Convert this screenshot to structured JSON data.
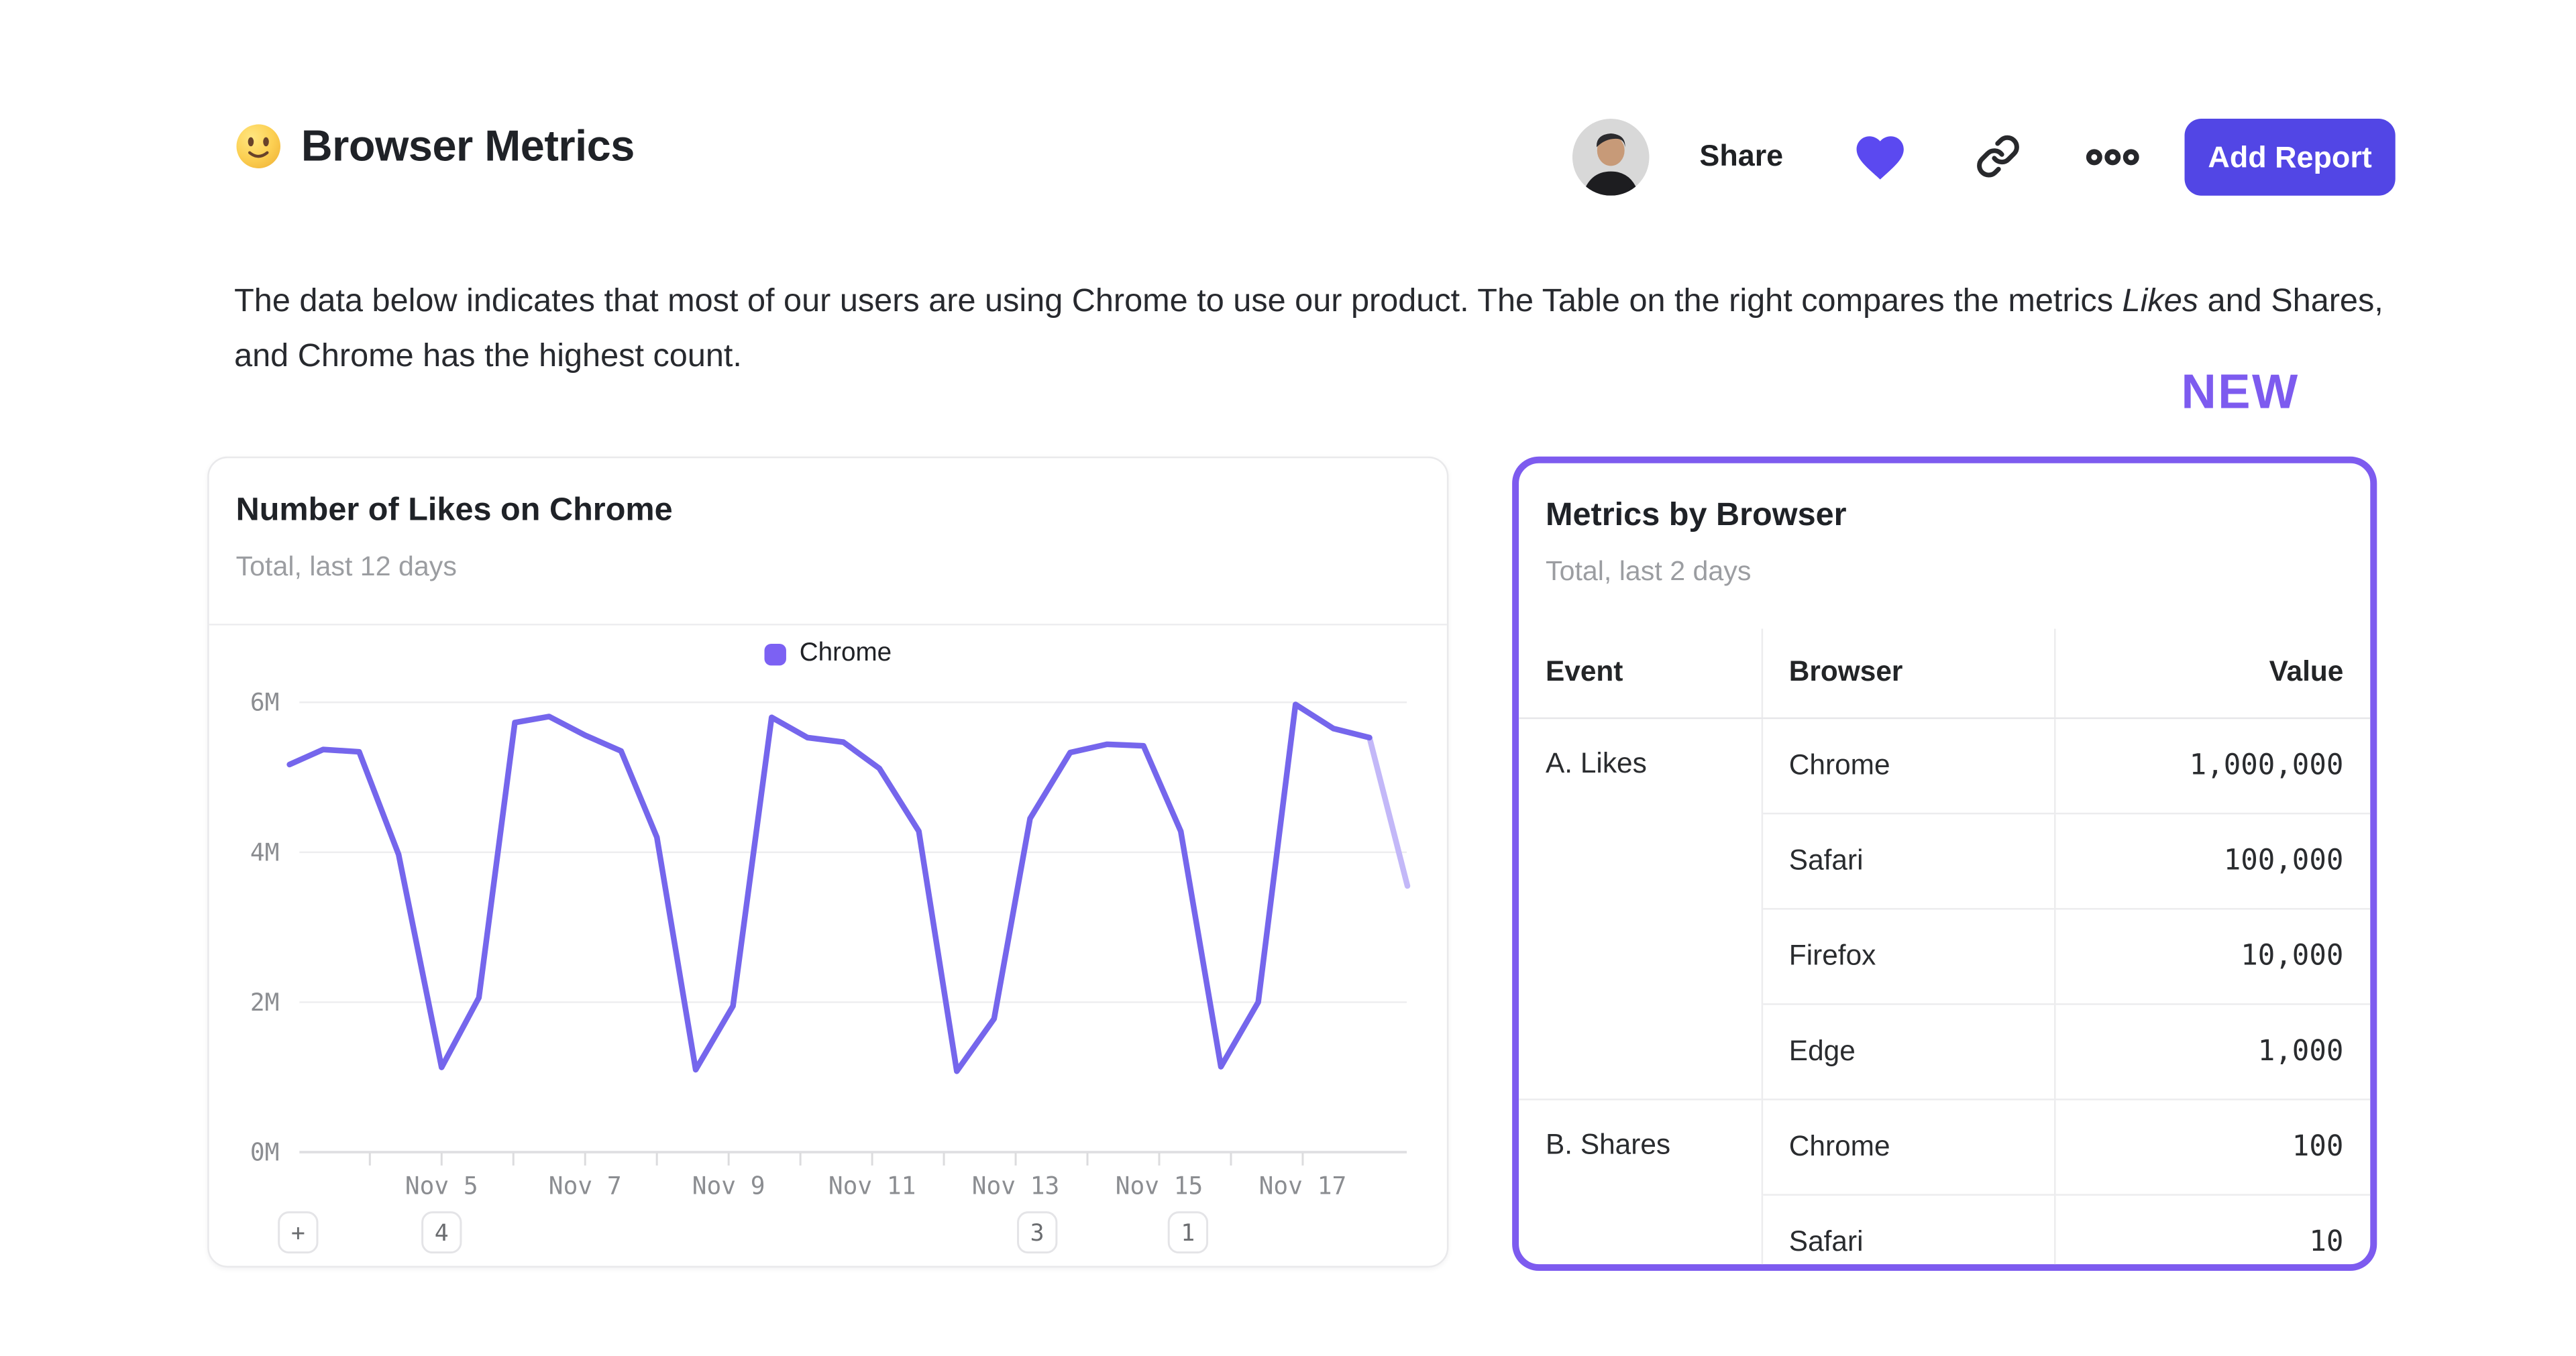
{
  "header": {
    "title": "Browser Metrics",
    "share_label": "Share",
    "add_report_label": "Add Report"
  },
  "description": {
    "part1": "The data below indicates that most of our users are using Chrome to use our product. The Table on the right compares the metrics ",
    "italic": "Likes",
    "part2": " and Shares, and Chrome has the highest count."
  },
  "new_badge": "NEW",
  "colors": {
    "accent_indigo": "#5246e5",
    "heart": "#5b49f0",
    "highlight_purple": "#7d5bef",
    "line": "#7566ec",
    "line_faded": "#c3b8f8",
    "legend_swatch": "#7c61f3"
  },
  "chart_data": {
    "type": "line",
    "title": "Number of Likes on Chrome",
    "subtitle": "Total, last 12 days",
    "unit": "millions",
    "ylim": [
      0,
      6.4
    ],
    "grid": "horizontal",
    "legend_position": "top-center",
    "yticks": [
      {
        "value": 6,
        "label": "6M"
      },
      {
        "value": 4,
        "label": "4M"
      },
      {
        "value": 2,
        "label": "2M"
      },
      {
        "value": 0,
        "label": "0M"
      }
    ],
    "xticks": [
      {
        "day": 5,
        "label": "Nov 5"
      },
      {
        "day": 7,
        "label": "Nov 7"
      },
      {
        "day": 9,
        "label": "Nov 9"
      },
      {
        "day": 11,
        "label": "Nov 11"
      },
      {
        "day": 13,
        "label": "Nov 13"
      },
      {
        "day": 15,
        "label": "Nov 15"
      },
      {
        "day": 17,
        "label": "Nov 17"
      }
    ],
    "series": [
      {
        "name": "Chrome",
        "points": [
          [
            2.88,
            5.17
          ],
          [
            3.35,
            5.37
          ],
          [
            3.85,
            5.34
          ],
          [
            4.4,
            3.97
          ],
          [
            5.0,
            1.13
          ],
          [
            5.52,
            2.06
          ],
          [
            6.02,
            5.73
          ],
          [
            6.5,
            5.81
          ],
          [
            7.0,
            5.56
          ],
          [
            7.5,
            5.35
          ],
          [
            8.0,
            4.2
          ],
          [
            8.54,
            1.1
          ],
          [
            9.06,
            1.95
          ],
          [
            9.6,
            5.8
          ],
          [
            10.1,
            5.53
          ],
          [
            10.6,
            5.47
          ],
          [
            11.1,
            5.12
          ],
          [
            11.65,
            4.28
          ],
          [
            12.18,
            1.08
          ],
          [
            12.7,
            1.78
          ],
          [
            13.2,
            4.45
          ],
          [
            13.76,
            5.33
          ],
          [
            14.27,
            5.44
          ],
          [
            14.78,
            5.42
          ],
          [
            15.3,
            4.28
          ],
          [
            15.86,
            1.14
          ],
          [
            16.38,
            2.0
          ],
          [
            16.9,
            5.97
          ],
          [
            17.43,
            5.65
          ],
          [
            17.93,
            5.53
          ],
          [
            18.46,
            3.55
          ]
        ]
      }
    ],
    "faded_from_index": 29,
    "annotations": [
      {
        "label": "+",
        "day": 3.0
      },
      {
        "label": "4",
        "day": 5.0
      },
      {
        "label": "3",
        "day": 13.3
      },
      {
        "label": "1",
        "day": 15.4
      }
    ]
  },
  "table_card": {
    "title": "Metrics by Browser",
    "subtitle": "Total, last 2 days",
    "columns": [
      "Event",
      "Browser",
      "Value"
    ],
    "groups": [
      {
        "event": "A. Likes",
        "rows": [
          [
            "Chrome",
            "1,000,000"
          ],
          [
            "Safari",
            "100,000"
          ],
          [
            "Firefox",
            "10,000"
          ],
          [
            "Edge",
            "1,000"
          ]
        ]
      },
      {
        "event": "B. Shares",
        "rows": [
          [
            "Chrome",
            "100"
          ],
          [
            "Safari",
            "10"
          ]
        ]
      }
    ]
  }
}
